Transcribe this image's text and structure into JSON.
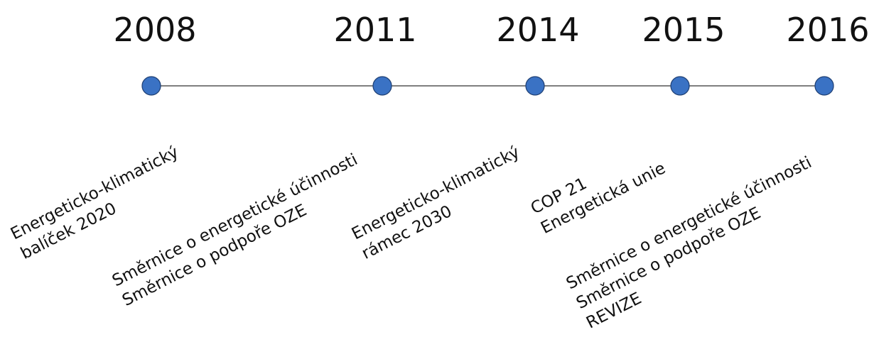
{
  "events": [
    {
      "year": "2008",
      "lines": [
        "Energeticko-klimatický",
        "balíček 2020"
      ]
    },
    {
      "year": "2011",
      "lines": [
        "Směrnice o energetické účinnosti",
        "Směrnice o podpoře OZE"
      ]
    },
    {
      "year": "2014",
      "lines": [
        "Energeticko-klimatický",
        "rámec 2030"
      ]
    },
    {
      "year": "2015",
      "lines": [
        "COP 21",
        "Energetická unie"
      ]
    },
    {
      "year": "2016",
      "lines": [
        "Směrnice o energetické účinnosti",
        "Směrnice o podpoře OZE",
        "REVIZE"
      ]
    }
  ]
}
